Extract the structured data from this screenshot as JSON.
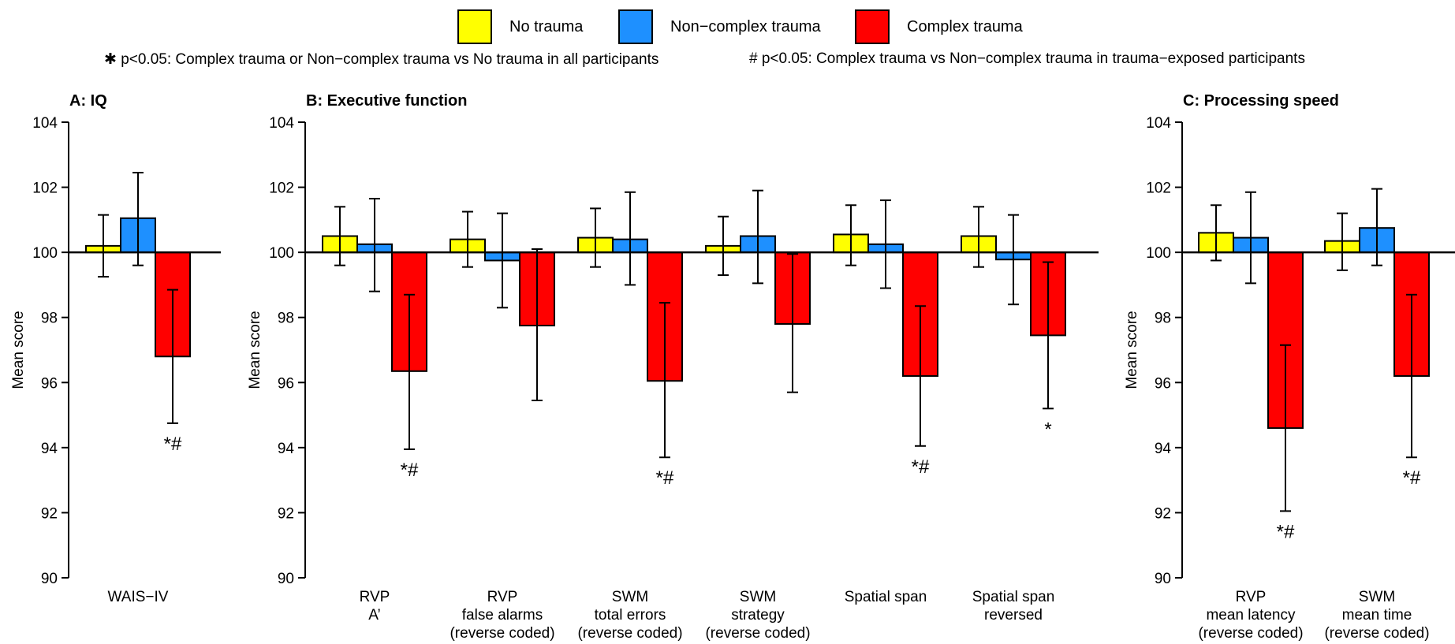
{
  "legend": [
    {
      "name": "No trauma",
      "color": "#ffff00"
    },
    {
      "name": "Non−complex trauma",
      "color": "#1e90ff"
    },
    {
      "name": "Complex trauma",
      "color": "#ff0000"
    }
  ],
  "notes": {
    "star": "✱ p<0.05: Complex trauma or Non−complex trauma vs No trauma in all participants",
    "hash": "# p<0.05: Complex trauma vs Non−complex trauma in trauma−exposed participants"
  },
  "chart_data": [
    {
      "type": "bar",
      "title": "A: IQ",
      "ylabel": "Mean score",
      "ylim": [
        90,
        104
      ],
      "yticks": [
        90,
        92,
        94,
        96,
        98,
        100,
        102,
        104
      ],
      "baseline": 100,
      "error_bars": true,
      "categories": [
        [
          "WAIS−IV"
        ]
      ],
      "series": [
        {
          "name": "No trauma",
          "values": [
            100.2
          ],
          "ci_low": [
            99.25
          ],
          "ci_high": [
            101.15
          ]
        },
        {
          "name": "Non−complex trauma",
          "values": [
            101.05
          ],
          "ci_low": [
            99.6
          ],
          "ci_high": [
            102.45
          ]
        },
        {
          "name": "Complex trauma",
          "values": [
            96.8
          ],
          "ci_low": [
            94.75
          ],
          "ci_high": [
            98.85
          ]
        }
      ],
      "annotations": [
        "*#"
      ]
    },
    {
      "type": "bar",
      "title": "B: Executive function",
      "ylabel": "Mean score",
      "ylim": [
        90,
        104
      ],
      "yticks": [
        90,
        92,
        94,
        96,
        98,
        100,
        102,
        104
      ],
      "baseline": 100,
      "error_bars": true,
      "categories": [
        [
          "RVP",
          "A’"
        ],
        [
          "RVP",
          "false alarms",
          "(reverse coded)"
        ],
        [
          "SWM",
          "total errors",
          "(reverse coded)"
        ],
        [
          "SWM",
          "strategy",
          "(reverse coded)"
        ],
        [
          "Spatial span"
        ],
        [
          "Spatial span",
          "reversed"
        ]
      ],
      "series": [
        {
          "name": "No trauma",
          "values": [
            100.5,
            100.4,
            100.45,
            100.2,
            100.55,
            100.5
          ],
          "ci_low": [
            99.6,
            99.55,
            99.55,
            99.3,
            99.6,
            99.55
          ],
          "ci_high": [
            101.4,
            101.25,
            101.35,
            101.1,
            101.45,
            101.4
          ]
        },
        {
          "name": "Non−complex trauma",
          "values": [
            100.25,
            99.75,
            100.4,
            100.5,
            100.25,
            99.78
          ],
          "ci_low": [
            98.8,
            98.3,
            99.0,
            99.05,
            98.9,
            98.4
          ],
          "ci_high": [
            101.65,
            101.2,
            101.85,
            101.9,
            101.6,
            101.15
          ]
        },
        {
          "name": "Complex trauma",
          "values": [
            96.35,
            97.75,
            96.05,
            97.8,
            96.2,
            97.45
          ],
          "ci_low": [
            93.95,
            95.45,
            93.7,
            95.7,
            94.05,
            95.2
          ],
          "ci_high": [
            98.7,
            100.1,
            98.45,
            99.95,
            98.35,
            99.7
          ]
        }
      ],
      "annotations": [
        "*#",
        "",
        "*#",
        "",
        "*#",
        "*"
      ]
    },
    {
      "type": "bar",
      "title": "C: Processing speed",
      "ylabel": "Mean score",
      "ylim": [
        90,
        104
      ],
      "yticks": [
        90,
        92,
        94,
        96,
        98,
        100,
        102,
        104
      ],
      "baseline": 100,
      "error_bars": true,
      "categories": [
        [
          "RVP",
          "mean latency",
          "(reverse coded)"
        ],
        [
          "SWM",
          "mean time",
          "(reverse coded)"
        ]
      ],
      "series": [
        {
          "name": "No trauma",
          "values": [
            100.6,
            100.35
          ],
          "ci_low": [
            99.75,
            99.45
          ],
          "ci_high": [
            101.45,
            101.2
          ]
        },
        {
          "name": "Non−complex trauma",
          "values": [
            100.45,
            100.75
          ],
          "ci_low": [
            99.05,
            99.6
          ],
          "ci_high": [
            101.85,
            101.95
          ]
        },
        {
          "name": "Complex trauma",
          "values": [
            94.6,
            96.2
          ],
          "ci_low": [
            92.05,
            93.7
          ],
          "ci_high": [
            97.15,
            98.7
          ]
        }
      ],
      "annotations": [
        "*#",
        "*#"
      ]
    }
  ]
}
